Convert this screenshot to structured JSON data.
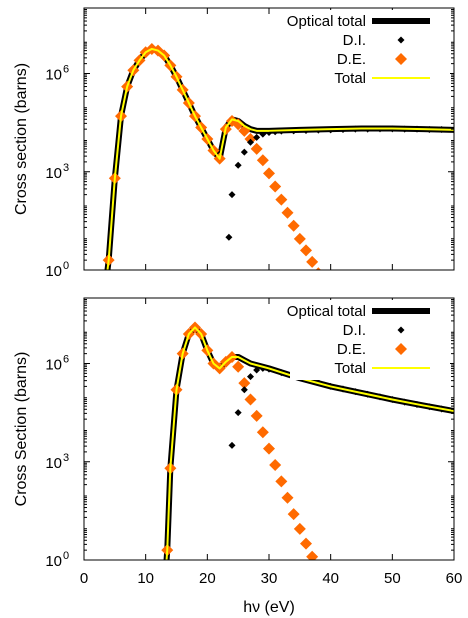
{
  "colors": {
    "optical_total": "#000000",
    "di": "#000000",
    "de": "#ff6a00",
    "total": "#ffff00"
  },
  "chart_data": [
    {
      "type": "line",
      "panel": "top",
      "ylabel": "Cross section (barns)",
      "xlim": [
        0,
        60
      ],
      "ylim_log10": [
        0,
        8
      ],
      "y_scale": "log",
      "y_ticks": [
        {
          "v": 0,
          "label": "10",
          "exp": "0"
        },
        {
          "v": 3,
          "label": "10",
          "exp": "3"
        },
        {
          "v": 6,
          "label": "10",
          "exp": "6"
        }
      ],
      "x_ticks": [
        0,
        10,
        20,
        30,
        40,
        50,
        60
      ],
      "grid": false,
      "legend_placement": "top-right",
      "legend": [
        "Optical total",
        "D.I.",
        "D.E.",
        "Total"
      ],
      "series": [
        {
          "name": "Optical total",
          "style": "line-thick",
          "x": [
            3.5,
            4,
            5,
            6,
            7,
            8,
            9,
            10,
            11,
            12,
            13,
            14,
            15,
            16,
            17,
            18,
            19,
            20,
            21,
            22,
            23,
            24,
            25,
            26,
            27,
            28,
            29,
            30,
            35,
            40,
            45,
            50,
            55,
            60
          ],
          "y": [
            -0.5,
            0.3,
            2.8,
            4.7,
            5.6,
            6.1,
            6.4,
            6.65,
            6.75,
            6.7,
            6.55,
            6.25,
            5.9,
            5.5,
            5.1,
            4.7,
            4.35,
            4.0,
            3.65,
            3.4,
            4.35,
            4.6,
            4.55,
            4.4,
            4.3,
            4.25,
            4.25,
            4.25,
            4.28,
            4.3,
            4.32,
            4.32,
            4.3,
            4.28
          ]
        },
        {
          "name": "D.I.",
          "style": "markers-diamond-small",
          "x": [
            23.5,
            24,
            25,
            26,
            27,
            28,
            29,
            30,
            31,
            32,
            34,
            36,
            38,
            40,
            42,
            44,
            46,
            48,
            50,
            52,
            54,
            56,
            58,
            60
          ],
          "y": [
            1.0,
            2.3,
            3.2,
            3.6,
            3.9,
            4.05,
            4.15,
            4.2,
            4.22,
            4.24,
            4.25,
            4.26,
            4.27,
            4.28,
            4.29,
            4.3,
            4.3,
            4.31,
            4.31,
            4.3,
            4.3,
            4.29,
            4.29,
            4.28
          ]
        },
        {
          "name": "D.E.",
          "style": "markers-diamond-large",
          "x": [
            4,
            5,
            6,
            7,
            8,
            9,
            10,
            11,
            12,
            13,
            14,
            15,
            16,
            17,
            18,
            19,
            20,
            21,
            22,
            23,
            24,
            25,
            26,
            27,
            28,
            29,
            30,
            31,
            32,
            33,
            34,
            35,
            36,
            37,
            38
          ],
          "y": [
            0.3,
            2.8,
            4.7,
            5.6,
            6.1,
            6.4,
            6.65,
            6.75,
            6.7,
            6.55,
            6.25,
            5.9,
            5.5,
            5.1,
            4.7,
            4.35,
            4.0,
            3.65,
            3.4,
            4.3,
            4.55,
            4.45,
            4.25,
            4.0,
            3.7,
            3.35,
            2.95,
            2.55,
            2.15,
            1.75,
            1.35,
            0.95,
            0.6,
            0.25,
            -0.1
          ]
        },
        {
          "name": "Total",
          "style": "line-thin",
          "x": [
            3.5,
            4,
            5,
            6,
            7,
            8,
            9,
            10,
            11,
            12,
            13,
            14,
            15,
            16,
            17,
            18,
            19,
            20,
            21,
            22,
            23,
            24,
            25,
            26,
            27,
            28,
            29,
            30,
            35,
            40,
            45,
            50,
            55,
            60
          ],
          "y": [
            -0.5,
            0.3,
            2.8,
            4.7,
            5.6,
            6.1,
            6.4,
            6.65,
            6.75,
            6.7,
            6.55,
            6.25,
            5.9,
            5.5,
            5.1,
            4.7,
            4.35,
            4.0,
            3.65,
            3.4,
            4.35,
            4.6,
            4.55,
            4.4,
            4.3,
            4.25,
            4.25,
            4.25,
            4.28,
            4.3,
            4.32,
            4.32,
            4.3,
            4.28
          ]
        }
      ]
    },
    {
      "type": "line",
      "panel": "bottom",
      "xlabel": "hν (eV)",
      "ylabel": "Cross Section (barns)",
      "xlim": [
        0,
        60
      ],
      "ylim_log10": [
        0,
        8
      ],
      "y_scale": "log",
      "y_ticks": [
        {
          "v": 0,
          "label": "10",
          "exp": "0"
        },
        {
          "v": 3,
          "label": "10",
          "exp": "3"
        },
        {
          "v": 6,
          "label": "10",
          "exp": "6"
        }
      ],
      "x_ticks": [
        0,
        10,
        20,
        30,
        40,
        50,
        60
      ],
      "grid": false,
      "legend_placement": "top-right",
      "legend": [
        "Optical total",
        "D.I.",
        "D.E.",
        "Total"
      ],
      "series": [
        {
          "name": "Optical total",
          "style": "line-thick",
          "x": [
            13.2,
            13.5,
            14,
            15,
            16,
            17,
            18,
            19,
            20,
            21,
            22,
            23,
            24,
            25,
            26,
            27,
            28,
            29,
            30,
            35,
            40,
            45,
            50,
            55,
            60
          ],
          "y": [
            -0.5,
            0.3,
            2.8,
            5.2,
            6.3,
            6.9,
            7.1,
            6.9,
            6.4,
            6.0,
            5.85,
            6.05,
            6.2,
            6.2,
            6.1,
            6.0,
            5.95,
            5.9,
            5.85,
            5.55,
            5.3,
            5.1,
            4.9,
            4.72,
            4.55
          ]
        },
        {
          "name": "D.I.",
          "style": "markers-diamond-small",
          "x": [
            24,
            25,
            26,
            27,
            28,
            29,
            30,
            32,
            34,
            36,
            38,
            40,
            42,
            44,
            46,
            48,
            50,
            52,
            54,
            56,
            58,
            60
          ],
          "y": [
            3.5,
            4.5,
            5.2,
            5.6,
            5.8,
            5.85,
            5.83,
            5.72,
            5.62,
            5.52,
            5.42,
            5.3,
            5.22,
            5.14,
            5.06,
            4.98,
            4.9,
            4.82,
            4.75,
            4.68,
            4.61,
            4.55
          ]
        },
        {
          "name": "D.E.",
          "style": "markers-diamond-large",
          "x": [
            13.5,
            14,
            15,
            16,
            17,
            18,
            19,
            20,
            21,
            22,
            23,
            24,
            25,
            26,
            27,
            28,
            29,
            30,
            31,
            32,
            33,
            34,
            35,
            36,
            37,
            38
          ],
          "y": [
            0.3,
            2.8,
            5.2,
            6.3,
            6.9,
            7.1,
            6.9,
            6.4,
            6.0,
            5.85,
            6.05,
            6.2,
            5.9,
            5.4,
            4.9,
            4.4,
            3.9,
            3.4,
            2.9,
            2.4,
            1.9,
            1.4,
            0.95,
            0.5,
            0.1,
            -0.3
          ]
        },
        {
          "name": "Total",
          "style": "line-thin",
          "x": [
            13.2,
            13.5,
            14,
            15,
            16,
            17,
            18,
            19,
            20,
            21,
            22,
            23,
            24,
            25,
            26,
            27,
            28,
            29,
            30,
            35,
            40,
            45,
            50,
            55,
            60
          ],
          "y": [
            -0.5,
            0.3,
            2.8,
            5.2,
            6.3,
            6.9,
            7.1,
            6.9,
            6.4,
            6.0,
            5.85,
            6.05,
            6.2,
            6.2,
            6.1,
            6.0,
            5.95,
            5.9,
            5.85,
            5.55,
            5.3,
            5.1,
            4.9,
            4.72,
            4.55
          ]
        }
      ]
    }
  ]
}
